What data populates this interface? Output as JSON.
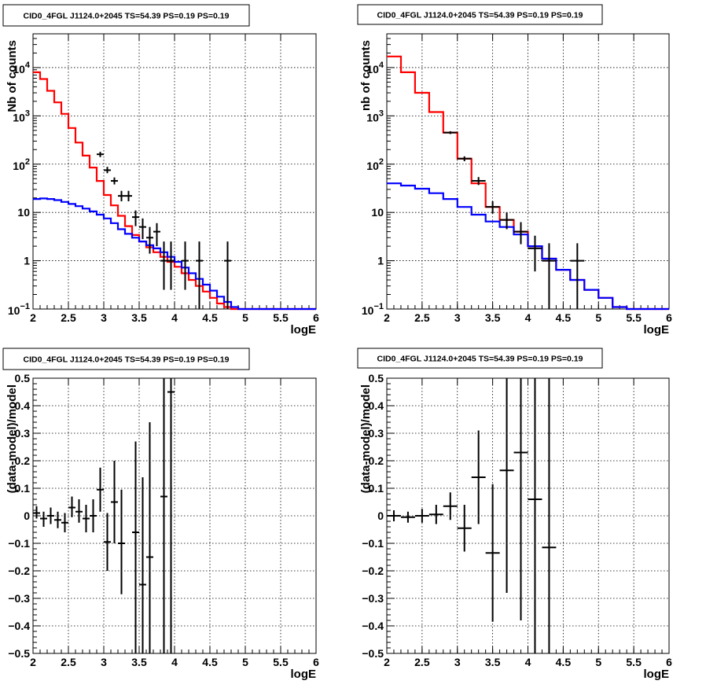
{
  "chart_data": [
    {
      "type": "line",
      "title": "CID0_4FGL J1124.0+2045 TS=54.39 PS=0.19 PS=0.19",
      "xlabel": "logE",
      "ylabel": "Nb of counts",
      "xlim": [
        2,
        6
      ],
      "ylim": [
        0.1,
        50000
      ],
      "yscale": "log",
      "grid": true,
      "xticks": [
        "2",
        "2.5",
        "3",
        "3.5",
        "4",
        "4.5",
        "5",
        "5.5",
        "6"
      ],
      "yticks": [
        {
          "value": 0.1,
          "base": "10",
          "exp": "−1"
        },
        {
          "value": 1,
          "label": "1"
        },
        {
          "value": 10,
          "label": "10"
        },
        {
          "value": 100,
          "base": "10",
          "exp": "2"
        },
        {
          "value": 1000,
          "base": "10",
          "exp": "3"
        },
        {
          "value": 10000,
          "base": "10",
          "exp": "4"
        }
      ],
      "step": 0.1,
      "series": [
        {
          "color": "#ff0000",
          "values": [
            8000,
            5800,
            3300,
            1900,
            1100,
            560,
            280,
            150,
            85,
            45,
            23,
            14,
            8.5,
            5.2,
            3.4,
            2.5,
            1.9,
            1.5,
            1.2,
            0.95,
            0.75,
            0.55,
            0.4,
            0.3,
            0.23,
            0.17,
            0.13,
            0.11,
            0.1,
            0.1,
            0.1,
            0.1,
            0.1,
            0.1,
            0.1,
            0.1,
            0.1,
            0.1,
            0.1,
            0.1
          ]
        },
        {
          "color": "#0000ff",
          "values": [
            19,
            19.5,
            19,
            18,
            16.5,
            15,
            13.5,
            12,
            10.5,
            9,
            7.5,
            6,
            4.5,
            3.6,
            3,
            2.5,
            2.1,
            1.8,
            1.5,
            1.2,
            0.95,
            0.72,
            0.55,
            0.42,
            0.32,
            0.24,
            0.18,
            0.14,
            0.11,
            0.1,
            0.1,
            0.1,
            0.1,
            0.1,
            0.1,
            0.1,
            0.1,
            0.1,
            0.1,
            0.1
          ]
        }
      ],
      "points": [
        {
          "x": 2.95,
          "y": 160,
          "lo": 140,
          "hi": 180
        },
        {
          "x": 3.05,
          "y": 75,
          "lo": 65,
          "hi": 88
        },
        {
          "x": 3.15,
          "y": 45,
          "lo": 38,
          "hi": 53
        },
        {
          "x": 3.25,
          "y": 22,
          "lo": 17,
          "hi": 28
        },
        {
          "x": 3.35,
          "y": 22,
          "lo": 17,
          "hi": 28
        },
        {
          "x": 3.45,
          "y": 8,
          "lo": 5.2,
          "hi": 11
        },
        {
          "x": 3.55,
          "y": 5,
          "lo": 2.8,
          "hi": 7.5
        },
        {
          "x": 3.65,
          "y": 3,
          "lo": 1.4,
          "hi": 5
        },
        {
          "x": 3.75,
          "y": 4,
          "lo": 2,
          "hi": 6
        },
        {
          "x": 3.85,
          "y": 1,
          "lo": 0.25,
          "hi": 2.5
        },
        {
          "x": 3.95,
          "y": 1,
          "lo": 0.25,
          "hi": 2.5
        },
        {
          "x": 4.15,
          "y": 1,
          "lo": 0.25,
          "hi": 2.5
        },
        {
          "x": 4.35,
          "y": 1,
          "lo": 0.1,
          "hi": 2.5
        },
        {
          "x": 4.75,
          "y": 1,
          "lo": 0.1,
          "hi": 2.5
        }
      ]
    },
    {
      "type": "line",
      "title": "CID0_4FGL J1124.0+2045 TS=54.39 PS=0.19 PS=0.19",
      "xlabel": "logE",
      "ylabel": "nb of counts",
      "xlim": [
        2,
        6
      ],
      "ylim": [
        0.1,
        50000
      ],
      "yscale": "log",
      "grid": true,
      "xticks": [
        "2",
        "2.5",
        "3",
        "3.5",
        "4",
        "4.5",
        "5",
        "5.5",
        "6"
      ],
      "yticks": [
        {
          "value": 0.1,
          "base": "10",
          "exp": "−1"
        },
        {
          "value": 1,
          "label": "1"
        },
        {
          "value": 10,
          "label": "10"
        },
        {
          "value": 100,
          "base": "10",
          "exp": "2"
        },
        {
          "value": 1000,
          "base": "10",
          "exp": "3"
        },
        {
          "value": 10000,
          "base": "10",
          "exp": "4"
        }
      ],
      "step": 0.2,
      "series": [
        {
          "color": "#ff0000",
          "values": [
            17000,
            8000,
            3000,
            1200,
            450,
            130,
            40,
            13,
            7,
            4,
            2,
            1.1,
            0.65,
            0.4,
            0.25,
            0.17,
            0.11,
            0.1,
            0.1,
            0.1
          ]
        },
        {
          "color": "#0000ff",
          "values": [
            40,
            36,
            31,
            25,
            19,
            13,
            9,
            6.5,
            5,
            3.5,
            2,
            1.1,
            0.65,
            0.4,
            0.25,
            0.17,
            0.11,
            0.1,
            0.1,
            0.1
          ]
        }
      ],
      "points": [
        {
          "x": 2.9,
          "y": 450,
          "lo": 420,
          "hi": 480
        },
        {
          "x": 3.1,
          "y": 130,
          "lo": 115,
          "hi": 145
        },
        {
          "x": 3.3,
          "y": 45,
          "lo": 37,
          "hi": 54
        },
        {
          "x": 3.5,
          "y": 13,
          "lo": 9.5,
          "hi": 17
        },
        {
          "x": 3.7,
          "y": 7,
          "lo": 4.5,
          "hi": 10
        },
        {
          "x": 3.9,
          "y": 4,
          "lo": 2.2,
          "hi": 6.3
        },
        {
          "x": 4.1,
          "y": 1.8,
          "lo": 0.6,
          "hi": 3.3
        },
        {
          "x": 4.3,
          "y": 1,
          "lo": 0.1,
          "hi": 2.3
        },
        {
          "x": 4.7,
          "y": 1,
          "lo": 0.1,
          "hi": 2.3
        }
      ]
    },
    {
      "type": "scatter",
      "title": "CID0_4FGL J1124.0+2045 TS=54.39 PS=0.19 PS=0.19",
      "xlabel": "logE",
      "ylabel": "(data-model)/model",
      "xlim": [
        2,
        6
      ],
      "ylim": [
        -0.5,
        0.5
      ],
      "grid": true,
      "xticks": [
        "2",
        "2.5",
        "3",
        "3.5",
        "4",
        "4.5",
        "5",
        "5.5",
        "6"
      ],
      "yticks": [
        "−0.5",
        "−0.4",
        "−0.3",
        "−0.2",
        "−0.1",
        "0",
        "0.1",
        "0.2",
        "0.3",
        "0.4",
        "0.5"
      ],
      "yvalues": [
        -0.5,
        -0.4,
        -0.3,
        -0.2,
        -0.1,
        0,
        0.1,
        0.2,
        0.3,
        0.4,
        0.5
      ],
      "step": 0.1,
      "points": [
        {
          "x": 2.05,
          "y": 0.01,
          "lo": -0.01,
          "hi": 0.035
        },
        {
          "x": 2.15,
          "y": -0.01,
          "lo": -0.04,
          "hi": 0.015
        },
        {
          "x": 2.25,
          "y": 0.0,
          "lo": -0.03,
          "hi": 0.03
        },
        {
          "x": 2.35,
          "y": -0.015,
          "lo": -0.045,
          "hi": 0.015
        },
        {
          "x": 2.45,
          "y": -0.025,
          "lo": -0.06,
          "hi": 0.01
        },
        {
          "x": 2.55,
          "y": 0.03,
          "lo": -0.005,
          "hi": 0.07
        },
        {
          "x": 2.65,
          "y": 0.015,
          "lo": -0.025,
          "hi": 0.06
        },
        {
          "x": 2.75,
          "y": -0.01,
          "lo": -0.06,
          "hi": 0.04
        },
        {
          "x": 2.85,
          "y": 0.0,
          "lo": -0.06,
          "hi": 0.06
        },
        {
          "x": 2.95,
          "y": 0.095,
          "lo": 0.015,
          "hi": 0.175
        },
        {
          "x": 3.05,
          "y": -0.095,
          "lo": -0.2,
          "hi": 0.01
        },
        {
          "x": 3.15,
          "y": 0.05,
          "lo": -0.1,
          "hi": 0.2
        },
        {
          "x": 3.25,
          "y": -0.1,
          "lo": -0.285,
          "hi": 0.095
        },
        {
          "x": 3.45,
          "y": -0.06,
          "lo": -0.5,
          "hi": 0.27
        },
        {
          "x": 3.55,
          "y": -0.25,
          "lo": -0.5,
          "hi": 0.14
        },
        {
          "x": 3.65,
          "y": -0.15,
          "lo": -0.5,
          "hi": 0.34
        },
        {
          "x": 3.85,
          "y": 0.07,
          "lo": -0.5,
          "hi": 0.5
        },
        {
          "x": 3.95,
          "y": 0.45,
          "lo": -0.5,
          "hi": 0.5
        }
      ]
    },
    {
      "type": "scatter",
      "title": "CID0_4FGL J1124.0+2045 TS=54.39 PS=0.19 PS=0.19",
      "xlabel": "logE",
      "ylabel": "(data-model)/model",
      "xlim": [
        2,
        6
      ],
      "ylim": [
        -0.5,
        0.5
      ],
      "grid": true,
      "xticks": [
        "2",
        "2.5",
        "3",
        "3.5",
        "4",
        "4.5",
        "5",
        "5.5",
        "6"
      ],
      "yticks": [
        "−0.5",
        "−0.4",
        "−0.3",
        "−0.2",
        "−0.1",
        "0",
        "0.1",
        "0.2",
        "0.3",
        "0.4",
        "0.5"
      ],
      "yvalues": [
        -0.5,
        -0.4,
        -0.3,
        -0.2,
        -0.1,
        0,
        0.1,
        0.2,
        0.3,
        0.4,
        0.5
      ],
      "step": 0.2,
      "points": [
        {
          "x": 2.1,
          "y": 0.0,
          "lo": -0.02,
          "hi": 0.02
        },
        {
          "x": 2.3,
          "y": -0.005,
          "lo": -0.025,
          "hi": 0.015
        },
        {
          "x": 2.5,
          "y": 0.0,
          "lo": -0.025,
          "hi": 0.025
        },
        {
          "x": 2.7,
          "y": 0.005,
          "lo": -0.03,
          "hi": 0.04
        },
        {
          "x": 2.9,
          "y": 0.035,
          "lo": -0.015,
          "hi": 0.085
        },
        {
          "x": 3.1,
          "y": -0.045,
          "lo": -0.13,
          "hi": 0.04
        },
        {
          "x": 3.3,
          "y": 0.14,
          "lo": -0.03,
          "hi": 0.31
        },
        {
          "x": 3.5,
          "y": -0.135,
          "lo": -0.385,
          "hi": 0.115
        },
        {
          "x": 3.7,
          "y": 0.165,
          "lo": -0.28,
          "hi": 0.5
        },
        {
          "x": 3.9,
          "y": 0.23,
          "lo": -0.38,
          "hi": 0.5
        },
        {
          "x": 4.1,
          "y": 0.06,
          "lo": -0.5,
          "hi": 0.5
        },
        {
          "x": 4.3,
          "y": -0.115,
          "lo": -0.5,
          "hi": 0.5
        }
      ]
    }
  ]
}
